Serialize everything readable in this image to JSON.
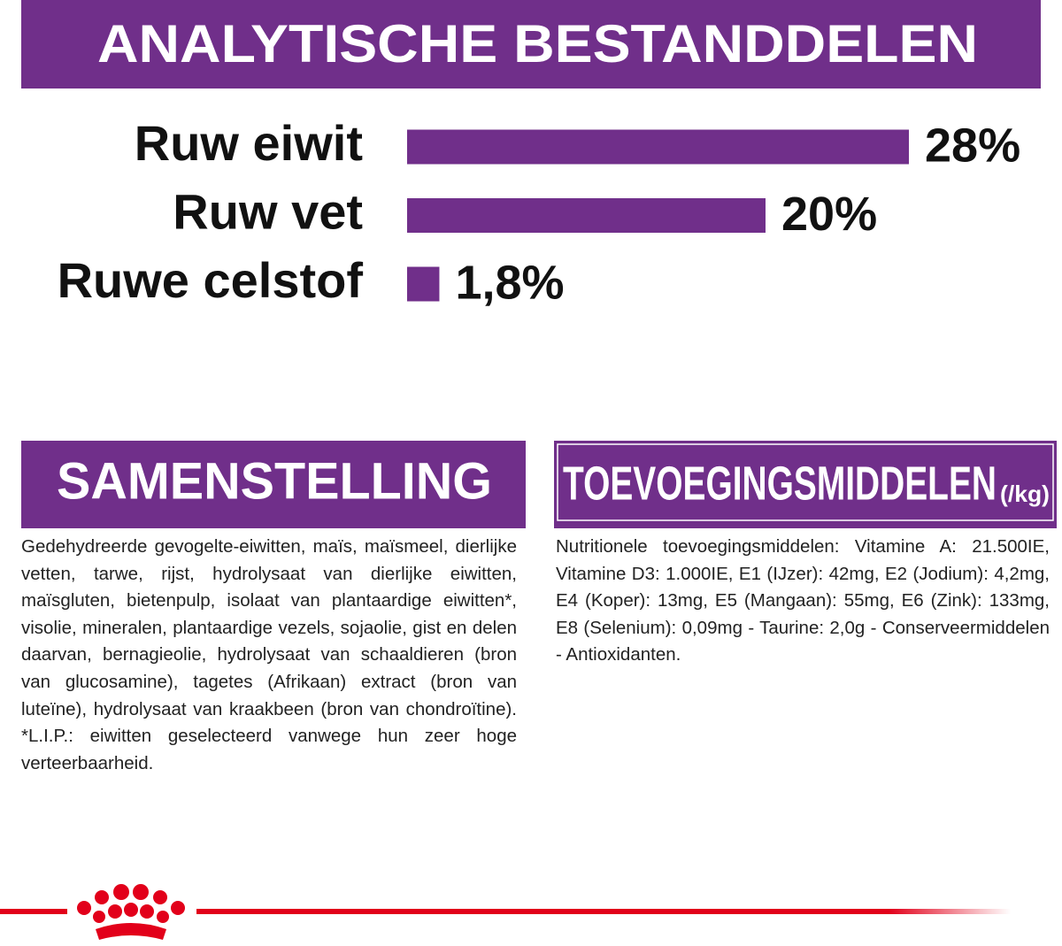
{
  "chart_data": {
    "type": "bar",
    "orientation": "horizontal",
    "title": "ANALYTISCHE BESTANDDELEN",
    "categories": [
      "Ruw eiwit",
      "Ruw vet",
      "Ruwe celstof"
    ],
    "values": [
      28,
      20,
      1.8
    ],
    "value_labels": [
      "28%",
      "20%",
      "1,8%"
    ],
    "color": "#702f8a"
  },
  "composition": {
    "title": "SAMENSTELLING",
    "text": "Gedehydreerde gevogelte-eiwitten, maïs, maïsmeel, dierlijke vetten, tarwe, rijst, hydrolysaat van dierlijke eiwitten, maïsgluten, bietenpulp, isolaat van plantaardige eiwitten*, visolie, mineralen, plantaardige vezels, sojaolie, gist en delen daarvan, bernagieolie, hydrolysaat van schaaldieren (bron van glucosamine), tagetes (Afrikaan) extract (bron van luteïne), hydrolysaat van kraakbeen (bron van chondroïtine). *L.I.P.: eiwitten geselecteerd vanwege hun zeer hoge verteerbaarheid."
  },
  "additives": {
    "title": "TOEVOEGINGSMIDDELEN",
    "unit": "(/kg)",
    "text": "Nutritionele toevoegingsmiddelen: Vitamine A: 21.500IE, Vitamine D3: 1.000IE, E1 (IJzer): 42mg, E2 (Jodium): 4,2mg, E4 (Koper): 13mg, E5 (Mangaan): 55mg, E6 (Zink): 133mg, E8 (Selenium): 0,09mg - Taurine: 2,0g - Conserveermiddelen - Antioxidanten."
  }
}
